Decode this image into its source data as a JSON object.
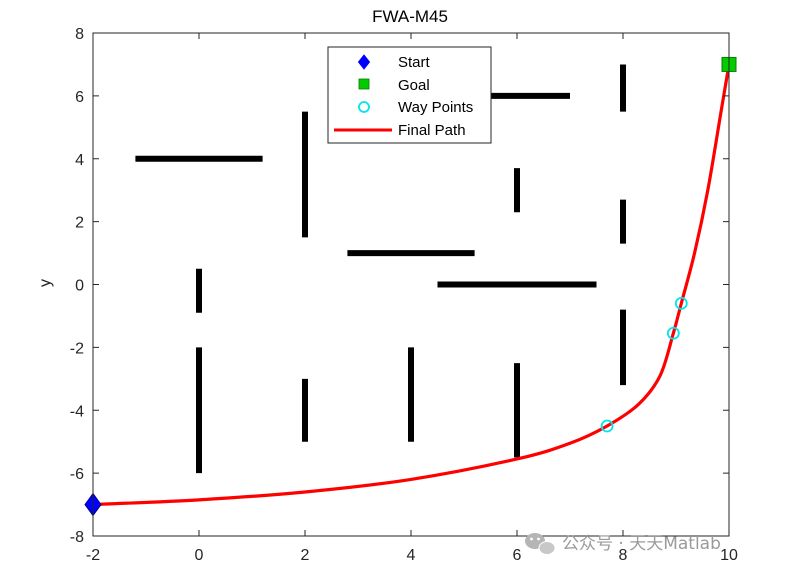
{
  "chart_data": {
    "type": "line",
    "title": "FWA-M45",
    "xlabel": "",
    "ylabel": "y",
    "xlim": [
      -2,
      10
    ],
    "ylim": [
      -8,
      8
    ],
    "xticks": [
      "-2",
      "0",
      "2",
      "4",
      "6",
      "8",
      "10"
    ],
    "yticks": [
      "8",
      "6",
      "4",
      "2",
      "0",
      "-2",
      "-4",
      "-6",
      "-8"
    ],
    "grid": false,
    "legend_position": "top-center",
    "legend": [
      "Start",
      "Goal",
      "Way Points",
      "Final Path"
    ],
    "start": {
      "x": -2,
      "y": -7
    },
    "goal": {
      "x": 10,
      "y": 7
    },
    "waypoints": [
      {
        "x": 7.7,
        "y": -4.5
      },
      {
        "x": 8.95,
        "y": -1.55
      },
      {
        "x": 9.1,
        "y": -0.6
      }
    ],
    "final_path": [
      {
        "x": -2,
        "y": -7
      },
      {
        "x": 0,
        "y": -6.85
      },
      {
        "x": 2,
        "y": -6.6
      },
      {
        "x": 4,
        "y": -6.2
      },
      {
        "x": 6,
        "y": -5.55
      },
      {
        "x": 7,
        "y": -5.05
      },
      {
        "x": 7.7,
        "y": -4.5
      },
      {
        "x": 8.3,
        "y": -3.8
      },
      {
        "x": 8.7,
        "y": -2.9
      },
      {
        "x": 8.95,
        "y": -1.55
      },
      {
        "x": 9.1,
        "y": -0.6
      },
      {
        "x": 9.35,
        "y": 1.0
      },
      {
        "x": 9.6,
        "y": 3.0
      },
      {
        "x": 9.85,
        "y": 5.5
      },
      {
        "x": 10,
        "y": 7
      }
    ],
    "obstacles": [
      {
        "x1": -1.2,
        "y1": 4,
        "x2": 1.2,
        "y2": 4
      },
      {
        "x1": 2,
        "y1": 1.5,
        "x2": 2,
        "y2": 5.5
      },
      {
        "x1": 5.5,
        "y1": 6,
        "x2": 7,
        "y2": 6
      },
      {
        "x1": 8,
        "y1": 5.5,
        "x2": 8,
        "y2": 7
      },
      {
        "x1": 6,
        "y1": 2.3,
        "x2": 6,
        "y2": 3.7
      },
      {
        "x1": 8,
        "y1": 1.3,
        "x2": 8,
        "y2": 2.7
      },
      {
        "x1": 2.8,
        "y1": 1,
        "x2": 5.2,
        "y2": 1
      },
      {
        "x1": 0,
        "y1": -0.9,
        "x2": 0,
        "y2": 0.5
      },
      {
        "x1": 4.5,
        "y1": 0,
        "x2": 7.5,
        "y2": 0
      },
      {
        "x1": 8,
        "y1": -3.2,
        "x2": 8,
        "y2": -0.8
      },
      {
        "x1": 0,
        "y1": -6,
        "x2": 0,
        "y2": -2
      },
      {
        "x1": 2,
        "y1": -5,
        "x2": 2,
        "y2": -3
      },
      {
        "x1": 4,
        "y1": -5,
        "x2": 4,
        "y2": -2
      },
      {
        "x1": 6,
        "y1": -5.5,
        "x2": 6,
        "y2": -2.5
      }
    ],
    "colors": {
      "start": "#0000ff",
      "goal": "#00cc00",
      "waypoints": "#00e5ee",
      "path": "#ff0000",
      "obstacles": "#000000"
    }
  },
  "watermark": {
    "icon": "wechat-icon",
    "text": "公众号 · 天天Matlab"
  }
}
